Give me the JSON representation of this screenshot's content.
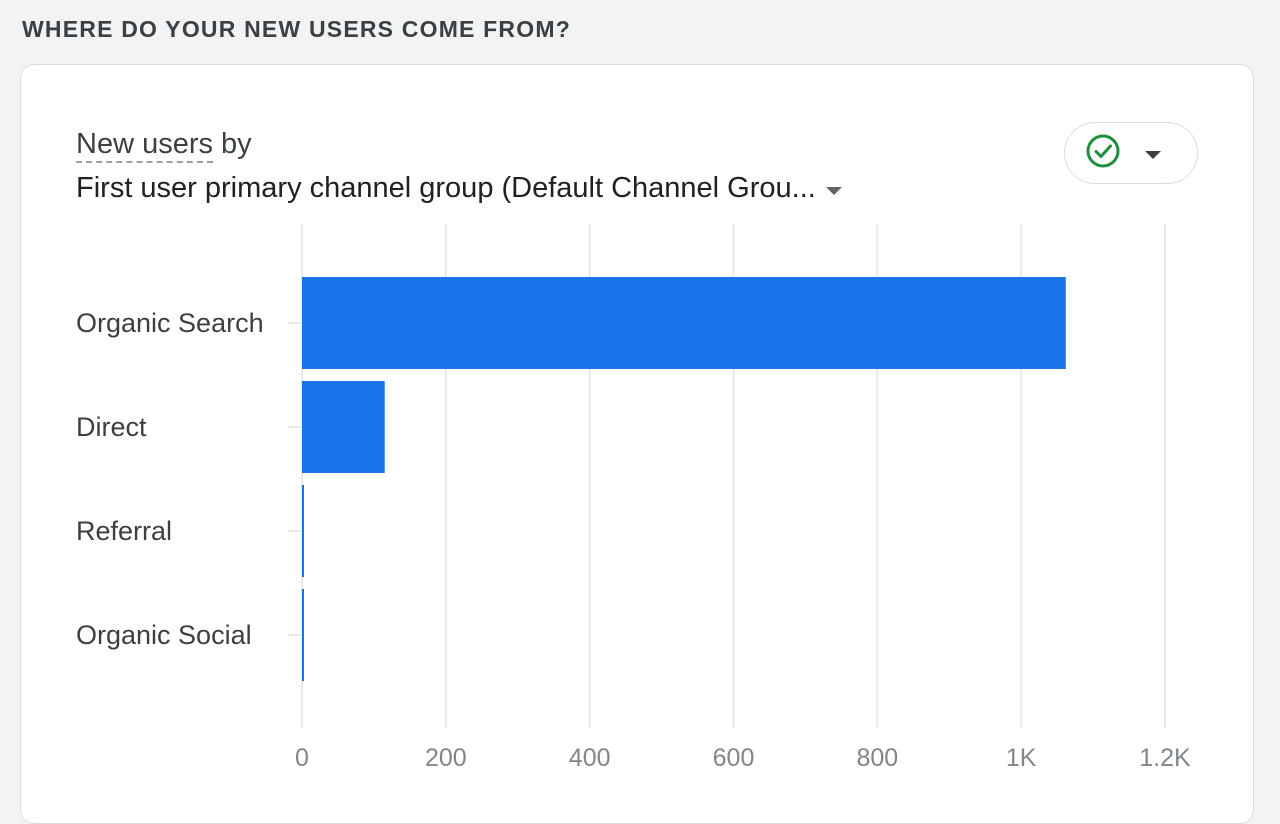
{
  "section": {
    "title": "WHERE DO YOUR NEW USERS COME FROM?"
  },
  "card": {
    "metric_label": "New users",
    "by_label": " by",
    "dimension_label": "First user primary channel group (Default Channel Grou...",
    "status_icon": "check-circle-icon",
    "menu_icon": "caret-down-icon"
  },
  "colors": {
    "bar": "#1a73e8",
    "check": "#1e8e3e",
    "grid": "#e8eaed"
  },
  "chart_data": {
    "type": "bar",
    "orientation": "horizontal",
    "categories": [
      "Organic Search",
      "Direct",
      "Referral",
      "Organic Social"
    ],
    "values": [
      1062,
      115,
      2,
      1
    ],
    "xlim": [
      0,
      1200
    ],
    "xticks": [
      {
        "value": 0,
        "label": "0"
      },
      {
        "value": 200,
        "label": "200"
      },
      {
        "value": 400,
        "label": "400"
      },
      {
        "value": 600,
        "label": "600"
      },
      {
        "value": 800,
        "label": "800"
      },
      {
        "value": 1000,
        "label": "1K"
      },
      {
        "value": 1200,
        "label": "1.2K"
      }
    ],
    "grid": true
  }
}
